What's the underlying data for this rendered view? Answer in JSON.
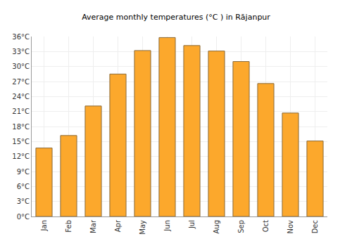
{
  "chart_data": {
    "type": "bar",
    "title": "Average monthly temperatures (°C ) in Rājanpur",
    "categories": [
      "Jan",
      "Feb",
      "Mar",
      "Apr",
      "May",
      "Jun",
      "Jul",
      "Aug",
      "Sep",
      "Oct",
      "Nov",
      "Dec"
    ],
    "values": [
      13.7,
      16.2,
      22.1,
      28.5,
      33.2,
      35.8,
      34.2,
      33.1,
      31.0,
      26.6,
      20.7,
      15.1
    ],
    "color": "#fca82c",
    "ylim": [
      0,
      36
    ],
    "yticks": [
      {
        "value": 0,
        "label": "0°C"
      },
      {
        "value": 3,
        "label": "3°C"
      },
      {
        "value": 6,
        "label": "6°C"
      },
      {
        "value": 9,
        "label": "9°C"
      },
      {
        "value": 12,
        "label": "12°C"
      },
      {
        "value": 15,
        "label": "15°C"
      },
      {
        "value": 18,
        "label": "18°C"
      },
      {
        "value": 21,
        "label": "21°C"
      },
      {
        "value": 24,
        "label": "24°C"
      },
      {
        "value": 27,
        "label": "27°C"
      },
      {
        "value": 30,
        "label": "30°C"
      },
      {
        "value": 33,
        "label": "33°C"
      },
      {
        "value": 36,
        "label": "36°C"
      }
    ],
    "grid": true
  }
}
